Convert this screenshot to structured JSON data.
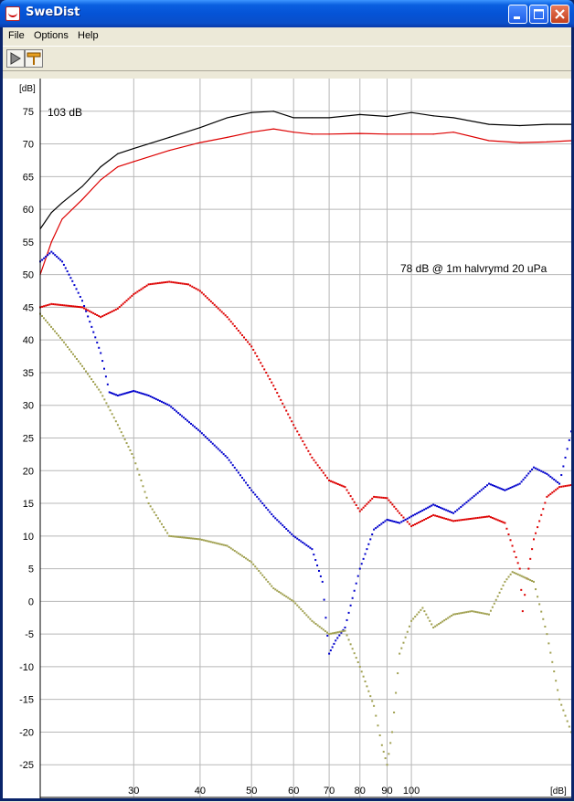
{
  "window": {
    "title": "SweDist"
  },
  "menu": [
    {
      "label": "File"
    },
    {
      "label": "Options"
    },
    {
      "label": "Help"
    }
  ],
  "toolbar": {
    "buttons": [
      {
        "icon": "play-icon"
      },
      {
        "icon": "measure-tool-icon"
      }
    ]
  },
  "colors": {
    "total": "#000000",
    "fundamental": "#dd0000",
    "h2": "#dd0000",
    "h3": "#0000cc",
    "h4": "#a0a050"
  },
  "chart_data": {
    "type": "line",
    "xlim": [
      20,
      200
    ],
    "ylim": [
      -30,
      80
    ],
    "x_scale": "log",
    "grid": true,
    "x_ticks": [
      30,
      40,
      50,
      60,
      70,
      80,
      90,
      100
    ],
    "y_ticks": [
      -25,
      -20,
      -15,
      -10,
      -5,
      0,
      5,
      10,
      15,
      20,
      25,
      30,
      35,
      40,
      45,
      50,
      55,
      60,
      65,
      70,
      75
    ],
    "y_unit_label": "[dB]",
    "x_unit_label": "[dB]",
    "annotations": [
      {
        "text": "103 dB"
      },
      {
        "text": "78 dB @ 1m halvrymd 20 uPa"
      }
    ],
    "series": [
      {
        "style": "line",
        "color": "#000000",
        "x": [
          20,
          21,
          22,
          24,
          26,
          28,
          30,
          35,
          40,
          45,
          50,
          55,
          60,
          65,
          70,
          80,
          90,
          100,
          110,
          120,
          140,
          160,
          180,
          200
        ],
        "y": [
          57,
          59.5,
          61,
          63.5,
          66.5,
          68.5,
          69.3,
          71,
          72.5,
          74,
          74.8,
          75,
          74,
          74,
          74,
          74.5,
          74.2,
          74.8,
          74.3,
          74,
          73,
          72.8,
          73,
          73
        ]
      },
      {
        "style": "line",
        "color": "#dd0000",
        "x": [
          20,
          21,
          22,
          24,
          26,
          28,
          30,
          35,
          40,
          45,
          50,
          55,
          60,
          65,
          70,
          80,
          90,
          100,
          110,
          120,
          140,
          160,
          180,
          200
        ],
        "y": [
          50,
          55,
          58.5,
          61.5,
          64.5,
          66.5,
          67.3,
          69,
          70.2,
          71,
          71.8,
          72.3,
          71.8,
          71.5,
          71.5,
          71.6,
          71.5,
          71.5,
          71.5,
          71.8,
          70.5,
          70.2,
          70.3,
          70.5
        ]
      },
      {
        "style": "dots",
        "color": "#dd0000",
        "x": [
          20,
          21,
          24,
          26,
          28,
          30,
          32,
          35,
          38,
          40,
          45,
          50,
          55,
          60,
          65,
          70,
          75,
          80,
          85,
          90,
          95,
          100,
          110,
          120,
          140,
          150,
          160,
          162,
          165,
          170,
          180,
          190,
          200
        ],
        "y": [
          45,
          45.5,
          45,
          43.5,
          44.8,
          47,
          48.5,
          48.9,
          48.5,
          47.5,
          43.5,
          39,
          33,
          27,
          22,
          18.5,
          17.5,
          13.8,
          16,
          15.8,
          13.5,
          11.5,
          13.2,
          12.3,
          13,
          12,
          5,
          -1.5,
          3.5,
          9.5,
          16,
          17.5,
          17.8
        ]
      },
      {
        "style": "dots",
        "color": "#0000cc",
        "x": [
          20,
          21,
          22,
          23,
          24,
          25,
          26,
          27,
          28,
          30,
          32,
          35,
          40,
          45,
          50,
          55,
          60,
          65,
          68,
          70,
          72,
          75,
          80,
          85,
          90,
          95,
          100,
          110,
          120,
          140,
          150,
          160,
          170,
          180,
          190,
          200
        ],
        "y": [
          52,
          53.5,
          52,
          49,
          46,
          42,
          38,
          32,
          31.5,
          32.2,
          31.5,
          30,
          26,
          22,
          17,
          13,
          10,
          8,
          3,
          -8,
          -6,
          -4,
          5,
          11,
          12.5,
          12,
          13,
          14.8,
          13.5,
          18,
          17,
          18,
          20.5,
          19.5,
          18,
          26
        ]
      },
      {
        "style": "dots",
        "color": "#a0a050",
        "x": [
          20,
          22,
          24,
          26,
          28,
          30,
          32,
          35,
          40,
          45,
          50,
          55,
          60,
          65,
          70,
          75,
          80,
          85,
          88,
          90,
          92,
          95,
          100,
          105,
          110,
          120,
          130,
          140,
          150,
          155,
          160,
          170,
          180,
          190,
          200
        ],
        "y": [
          44,
          40,
          36,
          32,
          27,
          22,
          15,
          10,
          9.5,
          8.5,
          6,
          2,
          0,
          -3,
          -5,
          -4.5,
          -10,
          -16,
          -22,
          -25,
          -20,
          -8,
          -3,
          -1,
          -4,
          -2,
          -1.5,
          -2,
          3,
          4.5,
          4,
          3,
          -5,
          -15,
          -20
        ]
      }
    ]
  }
}
